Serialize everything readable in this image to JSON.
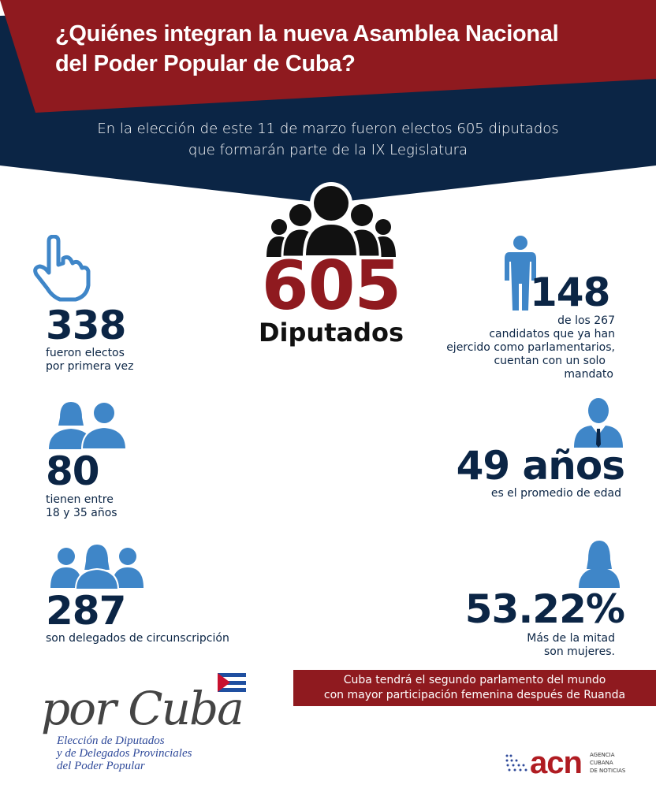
{
  "header": {
    "title_line1": "¿Quiénes integran la nueva Asamblea Nacional",
    "title_line2": "del Poder Popular de Cuba?",
    "subtitle_line1": "En la elección de este 11 de marzo fueron electos 605 diputados",
    "subtitle_line2": "que formarán parte de la IX Legislatura"
  },
  "center": {
    "number": "605",
    "label": "Diputados",
    "icon": "group-icon"
  },
  "stats": [
    {
      "number": "338",
      "text_line1": "fueron electos",
      "text_line2": "por primera vez",
      "icon": "pointing-hand-icon"
    },
    {
      "number": "80",
      "text_line1": "tienen entre",
      "text_line2": "18 y 35 años",
      "icon": "young-couple-icon"
    },
    {
      "number": "287",
      "text_line1": "son delegados de circunscripción",
      "icon": "group-of-three-icon"
    },
    {
      "number": "148",
      "text_line1": "de los 267",
      "text_line2": "candidatos que ya han",
      "text_line3": "ejercido como parlamentarios,",
      "text_line4": "cuentan con un solo",
      "text_line5": "mandato",
      "icon": "person-standing-icon"
    },
    {
      "number": "49 años",
      "text_line1": "es el promedio de edad",
      "icon": "businessman-icon"
    },
    {
      "number": "53.22%",
      "text_line1": "Más de la mitad",
      "text_line2": "son mujeres.",
      "icon": "woman-icon"
    }
  ],
  "banner": {
    "line1": "Cuba tendrá el segundo parlamento del mundo",
    "line2": "con mayor participación femenina después de Ruanda"
  },
  "logo_porcuba": {
    "script": "por Cuba",
    "line1": "Elección de Diputados",
    "line2": "y de Delegados Provinciales",
    "line3": "del Poder Popular"
  },
  "logo_acn": {
    "mark": "acn",
    "line1": "AGENCIA",
    "line2": "CUBANA",
    "line3": "DE NOTICIAS"
  },
  "colors": {
    "red": "#8f1a1f",
    "navy": "#0b2545",
    "blue": "#3f86c8"
  }
}
